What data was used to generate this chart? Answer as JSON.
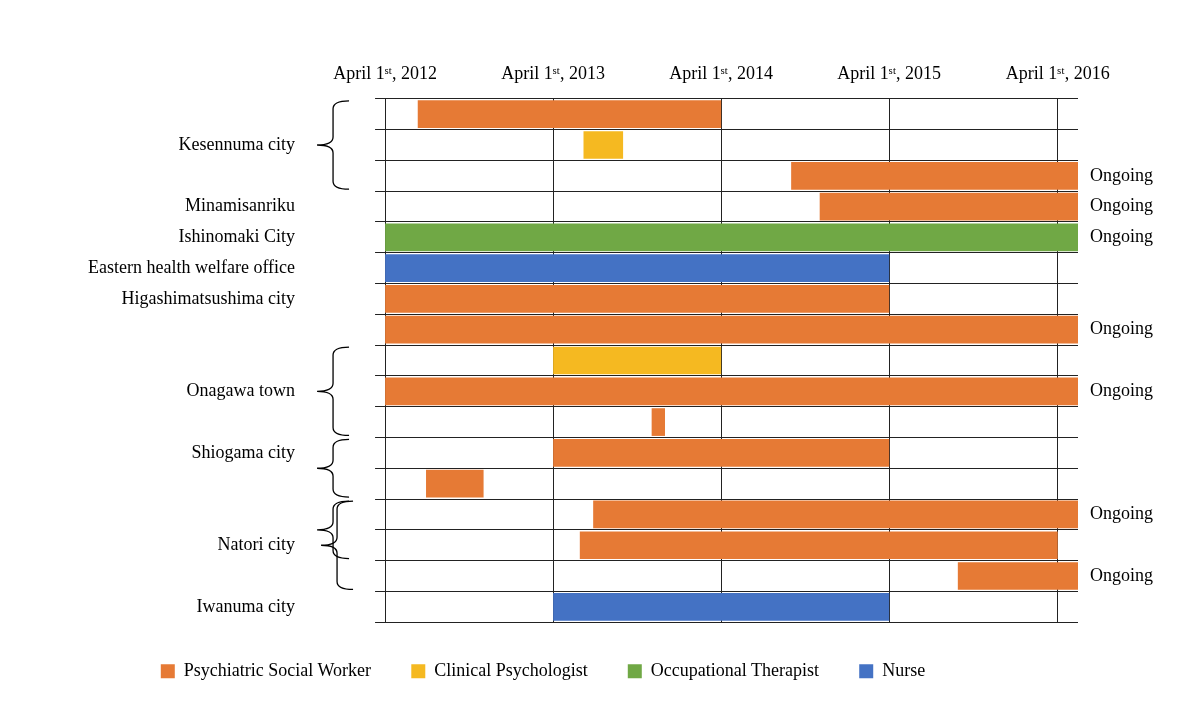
{
  "chart_data": {
    "type": "bar",
    "orientation": "horizontal",
    "grid": true,
    "legend": "bottom",
    "categories": [
      null,
      "Kesennuma city",
      null,
      "Minamisanriku",
      "Ishinomaki City",
      "Eastern health welfare office",
      "Higashimatsushima city",
      null,
      null,
      "Onagawa town",
      null,
      "Shiogama city",
      null,
      null,
      "Natori city",
      null,
      "Iwanuma city"
    ],
    "xlim": [
      "2012-04-01",
      "2016-05-15"
    ],
    "xticks": [
      {
        "value": "2012-04-01",
        "label": "April 1ˢᵗ, 2012"
      },
      {
        "value": "2013-04-01",
        "label": "April 1ˢᵗ, 2013"
      },
      {
        "value": "2014-04-01",
        "label": "April 1ˢᵗ, 2014"
      },
      {
        "value": "2015-04-01",
        "label": "April 1ˢᵗ, 2015"
      },
      {
        "value": "2016-04-01",
        "label": "April 1ˢᵗ, 2016"
      }
    ],
    "series": [
      {
        "name": "Psychiatric Social Worker",
        "color": "#e67a35",
        "base": [
          15502,
          null,
          16313,
          16375,
          null,
          null,
          15431,
          15431,
          null,
          15431,
          16010,
          15796,
          15520,
          15883,
          15854,
          16675,
          null
        ],
        "values": [
          659,
          null,
          623,
          561,
          null,
          null,
          1095,
          1505,
          null,
          1505,
          29,
          730,
          125,
          1053,
          1038,
          261,
          null
        ],
        "value_labels": [
          null,
          null,
          "Ongoing",
          "Ongoing",
          null,
          null,
          null,
          "Ongoing",
          null,
          "Ongoing",
          null,
          null,
          null,
          "Ongoing",
          null,
          "Ongoing",
          null
        ]
      },
      {
        "name": "Clinical Psychologist",
        "color": "#f5b921",
        "base": [
          null,
          15862,
          null,
          null,
          null,
          null,
          null,
          null,
          15796,
          null,
          null,
          null,
          null,
          null,
          null,
          null,
          null
        ],
        "values": [
          null,
          86,
          null,
          null,
          null,
          null,
          null,
          null,
          365,
          null,
          null,
          null,
          null,
          null,
          null,
          null,
          null
        ]
      },
      {
        "name": "Occupational Therapist",
        "color": "#70a845",
        "base": [
          null,
          null,
          null,
          null,
          15431,
          null,
          null,
          null,
          null,
          null,
          null,
          null,
          null,
          null,
          null,
          null,
          null
        ],
        "values": [
          null,
          null,
          null,
          null,
          1505,
          null,
          null,
          null,
          null,
          null,
          null,
          null,
          null,
          null,
          null,
          null,
          null
        ],
        "value_labels": [
          null,
          null,
          null,
          null,
          "Ongoing",
          null,
          null,
          null,
          null,
          null,
          null,
          null,
          null,
          null,
          null,
          null,
          null
        ]
      },
      {
        "name": "Nurse",
        "color": "#4472c4",
        "base": [
          null,
          null,
          null,
          null,
          null,
          15431,
          null,
          null,
          null,
          null,
          null,
          null,
          null,
          null,
          null,
          null,
          15796
        ],
        "values": [
          null,
          null,
          null,
          null,
          null,
          1095,
          null,
          null,
          null,
          null,
          null,
          null,
          null,
          null,
          null,
          null,
          730
        ]
      }
    ]
  }
}
